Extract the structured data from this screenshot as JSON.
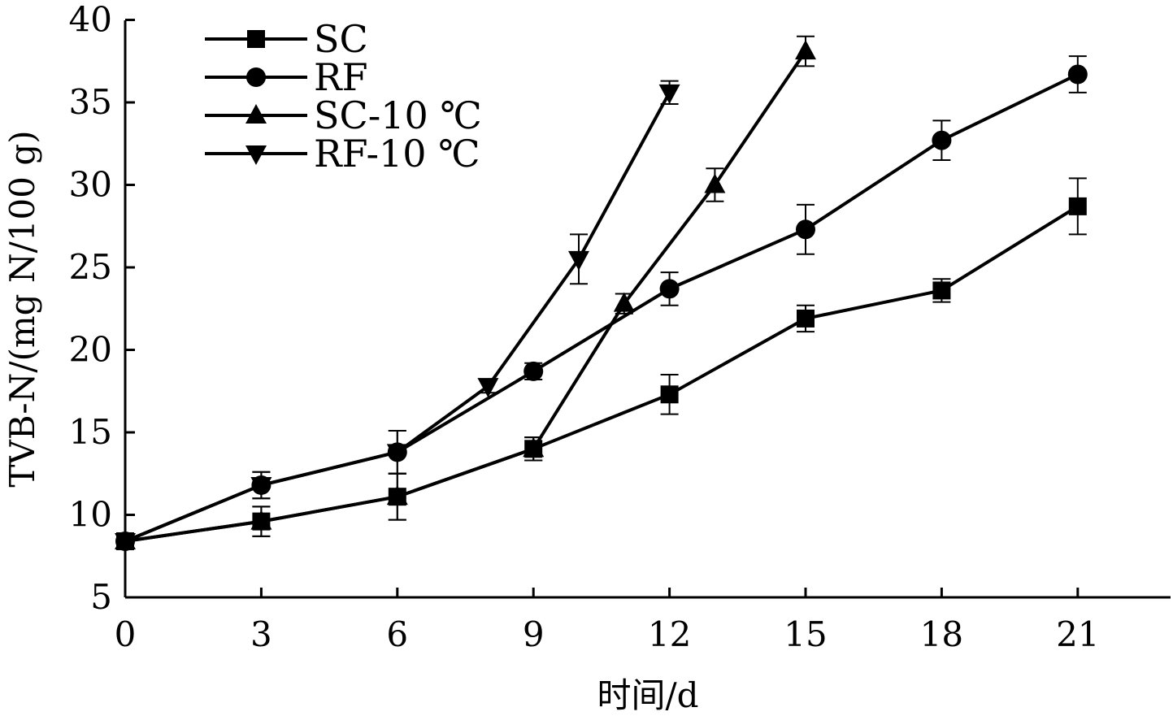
{
  "chart_data": {
    "type": "line",
    "title": "",
    "xlabel": "时间/d",
    "ylabel": "TVB-N/(mg N/100 g)",
    "xlim": [
      0,
      23
    ],
    "ylim": [
      5,
      40
    ],
    "xticks": [
      0,
      3,
      6,
      9,
      12,
      15,
      18,
      21
    ],
    "yticks": [
      5,
      10,
      15,
      20,
      25,
      30,
      35,
      40
    ],
    "grid": false,
    "legend_position": "top-left",
    "series": [
      {
        "name": "SC",
        "marker": "square",
        "x": [
          0,
          3,
          6,
          9,
          12,
          15,
          18,
          21
        ],
        "y": [
          8.4,
          9.6,
          11.1,
          14.0,
          17.3,
          21.9,
          23.6,
          28.7
        ],
        "err": [
          0.4,
          0.9,
          1.4,
          0.7,
          1.2,
          0.8,
          0.7,
          1.7
        ]
      },
      {
        "name": "RF",
        "marker": "circle",
        "x": [
          0,
          3,
          6,
          9,
          12,
          15,
          18,
          21
        ],
        "y": [
          8.4,
          11.8,
          13.8,
          18.7,
          23.7,
          27.3,
          32.7,
          36.7
        ],
        "err": [
          0.4,
          0.8,
          1.3,
          0.5,
          1.0,
          1.5,
          1.2,
          1.1
        ]
      },
      {
        "name": "SC-10 ℃",
        "marker": "triangle-up",
        "x": [
          0,
          3,
          6,
          9,
          11,
          13,
          15
        ],
        "y": [
          8.4,
          9.6,
          11.1,
          14.0,
          22.8,
          30.0,
          38.1
        ],
        "err": [
          0.4,
          0.9,
          1.4,
          0.7,
          0.6,
          1.0,
          0.9
        ]
      },
      {
        "name": "RF-10 ℃",
        "marker": "triangle-down",
        "x": [
          0,
          3,
          6,
          8,
          10,
          12
        ],
        "y": [
          8.4,
          11.8,
          13.8,
          17.8,
          25.5,
          35.6
        ],
        "err": [
          0.4,
          0.8,
          1.3,
          0.4,
          1.5,
          0.7
        ]
      }
    ]
  }
}
